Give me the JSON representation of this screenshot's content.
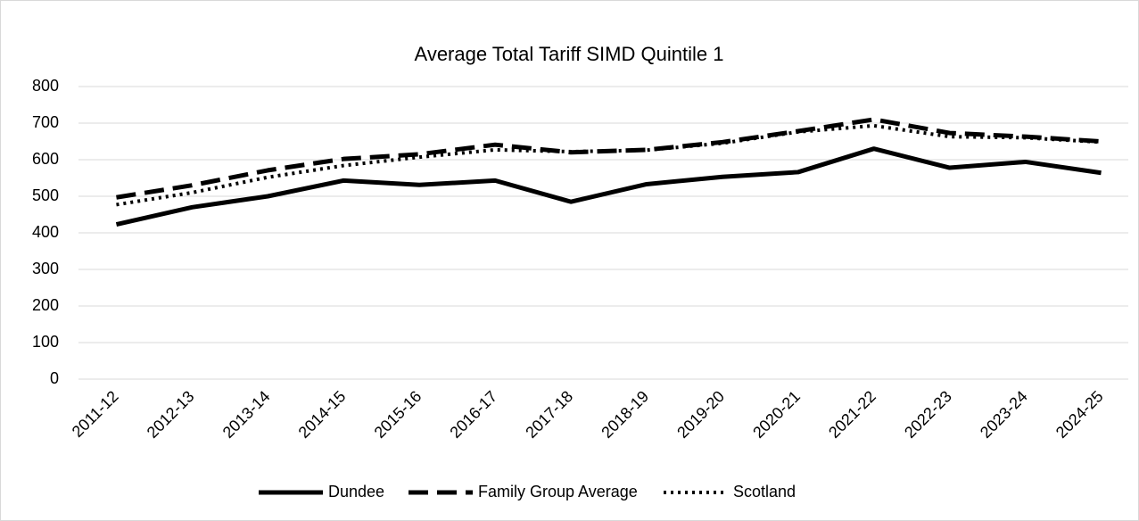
{
  "chart_data": {
    "type": "line",
    "title": "Average Total Tariff SIMD Quintile 1",
    "categories": [
      "2011-12",
      "2012-13",
      "2013-14",
      "2014-15",
      "2015-16",
      "2016-17",
      "2017-18",
      "2018-19",
      "2019-20",
      "2020-21",
      "2021-22",
      "2022-23",
      "2023-24",
      "2024-25"
    ],
    "series": [
      {
        "name": "Dundee",
        "color": "#000000",
        "style": "solid",
        "values": [
          423,
          470,
          500,
          543,
          531,
          543,
          485,
          533,
          553,
          566,
          630,
          578,
          594,
          564
        ]
      },
      {
        "name": "Family Group Average",
        "color": "#000000",
        "style": "dashed",
        "values": [
          497,
          530,
          571,
          602,
          615,
          641,
          620,
          627,
          648,
          678,
          710,
          673,
          663,
          650
        ]
      },
      {
        "name": "Scotland",
        "color": "#000000",
        "style": "dotted",
        "values": [
          477,
          510,
          552,
          584,
          607,
          627,
          622,
          626,
          645,
          676,
          693,
          663,
          660,
          648
        ]
      }
    ],
    "ylim": [
      0,
      800
    ],
    "yticks": [
      0,
      100,
      200,
      300,
      400,
      500,
      600,
      700,
      800
    ],
    "grid": true,
    "legend": "bottom"
  }
}
